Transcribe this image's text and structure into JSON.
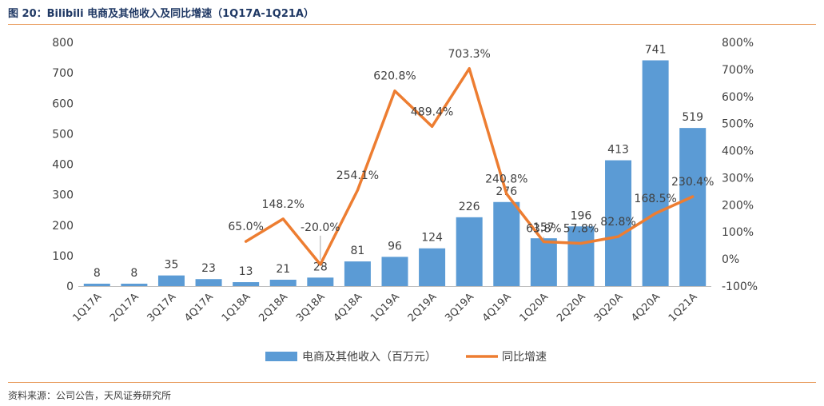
{
  "header": {
    "title": "图 20：Bilibili 电商及其他收入及同比增速（1Q17A-1Q21A）"
  },
  "footer": {
    "source": "资料来源：公司公告，天风证券研究所"
  },
  "chart_data": {
    "type": "bar+line",
    "categories": [
      "1Q17A",
      "2Q17A",
      "3Q17A",
      "4Q17A",
      "1Q18A",
      "2Q18A",
      "3Q18A",
      "4Q18A",
      "1Q19A",
      "2Q19A",
      "3Q19A",
      "4Q19A",
      "1Q20A",
      "2Q20A",
      "3Q20A",
      "4Q20A",
      "1Q21A"
    ],
    "series": [
      {
        "name": "电商及其他收入（百万元）",
        "kind": "bar",
        "axis": "left",
        "color": "#5b9bd5",
        "values": [
          8,
          8,
          35,
          23,
          13,
          21,
          28,
          81,
          96,
          124,
          226,
          276,
          157,
          196,
          413,
          741,
          519
        ],
        "labels": [
          "8",
          "8",
          "35",
          "23",
          "13",
          "21",
          "28",
          "81",
          "96",
          "124",
          "226",
          "276",
          "157",
          "196",
          "413",
          "741",
          "519"
        ]
      },
      {
        "name": "同比增速",
        "kind": "line",
        "axis": "right",
        "color": "#ed7d31",
        "values": [
          null,
          null,
          null,
          null,
          65.0,
          148.2,
          -20.0,
          254.1,
          620.8,
          489.4,
          703.3,
          240.8,
          63.8,
          57.8,
          82.8,
          168.5,
          230.4
        ],
        "labels": [
          "",
          "",
          "",
          "",
          "65.0%",
          "148.2%",
          "-20.0%",
          "254.1%",
          "620.8%",
          "489.4%",
          "703.3%",
          "240.8%",
          "63.8%",
          "57.8%",
          "82.8%",
          "168.5%",
          "230.4%"
        ]
      }
    ],
    "left_axis": {
      "min": 0,
      "max": 800,
      "step": 100,
      "ticks": [
        "0",
        "100",
        "200",
        "300",
        "400",
        "500",
        "600",
        "700",
        "800"
      ]
    },
    "right_axis": {
      "min": -100,
      "max": 800,
      "step": 100,
      "ticks": [
        "-100%",
        "0%",
        "100%",
        "200%",
        "300%",
        "400%",
        "500%",
        "600%",
        "700%",
        "800%"
      ]
    },
    "legend_position": "bottom",
    "grid": false
  }
}
